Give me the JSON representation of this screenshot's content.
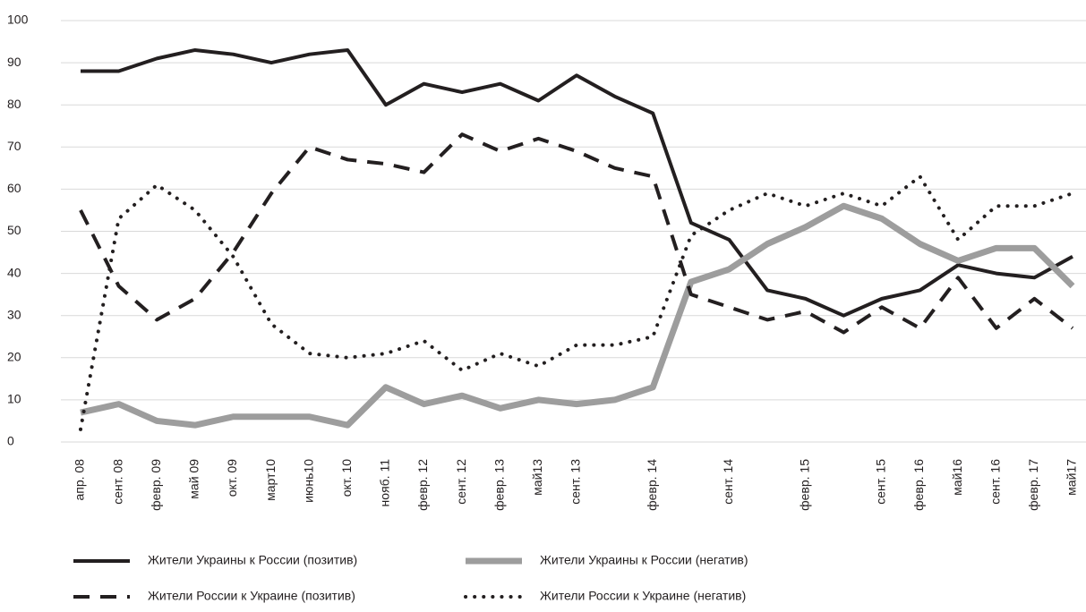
{
  "chart_data": {
    "type": "line",
    "categories": [
      "апр. 08",
      "сент. 08",
      "февр. 09",
      "май 09",
      "окт. 09",
      "март10",
      "июнь10",
      "окт. 10",
      "нояб. 11",
      "февр. 12",
      "сент. 12",
      "февр. 13",
      "май13",
      "сент. 13",
      null,
      "февр. 14",
      null,
      "сент. 14",
      null,
      "февр. 15",
      null,
      "сент. 15",
      "февр. 16",
      "май16",
      "сент. 16",
      "февр. 17",
      "май17"
    ],
    "series": [
      {
        "name": "Жители Украины к России (позитив)",
        "color": "#231f20",
        "style": "solid",
        "values": [
          88,
          88,
          91,
          93,
          92,
          90,
          92,
          93,
          80,
          85,
          83,
          85,
          81,
          87,
          82,
          78,
          52,
          48,
          36,
          34,
          30,
          34,
          36,
          42,
          40,
          39,
          44
        ]
      },
      {
        "name": "Жители Украины к России (негатив)",
        "color": "#9d9d9d",
        "style": "thick",
        "values": [
          7,
          9,
          5,
          4,
          6,
          6,
          6,
          4,
          13,
          9,
          11,
          8,
          10,
          9,
          10,
          13,
          38,
          41,
          47,
          51,
          56,
          53,
          47,
          43,
          46,
          46,
          37
        ]
      },
      {
        "name": "Жители России к Украине (позитив)",
        "color": "#231f20",
        "style": "dashed",
        "values": [
          55,
          37,
          29,
          34,
          45,
          59,
          70,
          67,
          66,
          64,
          73,
          69,
          72,
          69,
          65,
          63,
          35,
          32,
          29,
          31,
          26,
          32,
          27,
          39,
          27,
          34,
          27
        ]
      },
      {
        "name": "Жители России к Украине (негатив)",
        "color": "#231f20",
        "style": "dotted",
        "values": [
          3,
          53,
          61,
          55,
          44,
          28,
          21,
          20,
          21,
          24,
          17,
          21,
          18,
          23,
          23,
          25,
          49,
          55,
          59,
          56,
          59,
          56,
          63,
          48,
          56,
          56,
          59
        ]
      }
    ],
    "ylim": [
      0,
      100
    ],
    "yticks": [
      0,
      10,
      20,
      30,
      40,
      50,
      60,
      70,
      80,
      90,
      100
    ],
    "grid": true
  }
}
